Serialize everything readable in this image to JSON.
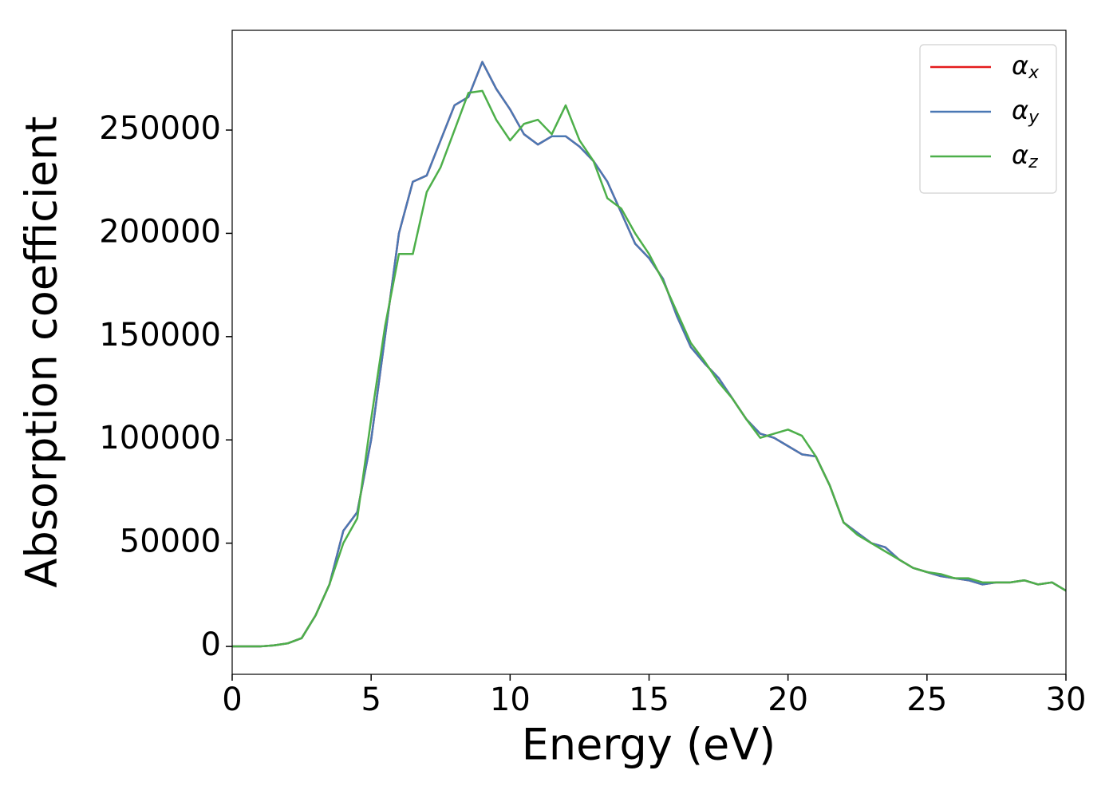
{
  "chart_data": {
    "type": "line",
    "xlabel": "Energy (eV)",
    "ylabel": "Absorption coefficient",
    "x": [
      0,
      0.5,
      1,
      1.5,
      2,
      2.5,
      3,
      3.5,
      4,
      4.5,
      5,
      5.5,
      6,
      6.5,
      7,
      7.5,
      8,
      8.5,
      9,
      9.5,
      10,
      10.5,
      11,
      11.5,
      12,
      12.5,
      13,
      13.5,
      14,
      14.5,
      15,
      15.5,
      16,
      16.5,
      17,
      17.5,
      18,
      18.5,
      19,
      19.5,
      20,
      20.5,
      21,
      21.5,
      22,
      22.5,
      23,
      23.5,
      24,
      24.5,
      25,
      25.5,
      26,
      26.5,
      27,
      27.5,
      28,
      28.5,
      29,
      29.5,
      30
    ],
    "series": [
      {
        "name": "αx",
        "color": "#e41a1c",
        "values": [
          0,
          0,
          0,
          500,
          1500,
          4000,
          15000,
          30000,
          56000,
          65000,
          100000,
          150000,
          200000,
          225000,
          228000,
          245000,
          262000,
          266000,
          283000,
          270000,
          260000,
          248000,
          243000,
          247000,
          247000,
          242000,
          235000,
          225000,
          210000,
          195000,
          188000,
          178000,
          160000,
          145000,
          137000,
          130000,
          120000,
          110000,
          103000,
          101000,
          97000,
          93000,
          92000,
          78000,
          60000,
          55000,
          50000,
          48000,
          42000,
          38000,
          36000,
          34000,
          33000,
          32000,
          30000,
          31000,
          31000,
          32000,
          30000,
          31000,
          27000
        ]
      },
      {
        "name": "αy",
        "color": "#4a78b4",
        "values": [
          0,
          0,
          0,
          500,
          1500,
          4000,
          15000,
          30000,
          56000,
          65000,
          100000,
          150000,
          200000,
          225000,
          228000,
          245000,
          262000,
          266000,
          283000,
          270000,
          260000,
          248000,
          243000,
          247000,
          247000,
          242000,
          235000,
          225000,
          210000,
          195000,
          188000,
          178000,
          160000,
          145000,
          137000,
          130000,
          120000,
          110000,
          103000,
          101000,
          97000,
          93000,
          92000,
          78000,
          60000,
          55000,
          50000,
          48000,
          42000,
          38000,
          36000,
          34000,
          33000,
          32000,
          30000,
          31000,
          31000,
          32000,
          30000,
          31000,
          27000
        ]
      },
      {
        "name": "αz",
        "color": "#4daf4a",
        "values": [
          0,
          0,
          0,
          500,
          1500,
          4000,
          15000,
          30000,
          50000,
          62000,
          110000,
          155000,
          190000,
          190000,
          220000,
          232000,
          250000,
          268000,
          269000,
          255000,
          245000,
          253000,
          255000,
          248000,
          262000,
          245000,
          235000,
          217000,
          212000,
          200000,
          190000,
          177000,
          162000,
          147000,
          138000,
          128000,
          120000,
          110000,
          101000,
          103000,
          105000,
          102000,
          92000,
          78000,
          60000,
          54000,
          50000,
          46000,
          42000,
          38000,
          36000,
          35000,
          33000,
          33000,
          31000,
          31000,
          31000,
          32000,
          30000,
          31000,
          27000
        ]
      }
    ],
    "xlim": [
      0,
      30
    ],
    "xticks": [
      0,
      5,
      10,
      15,
      20,
      25,
      30
    ],
    "ylim": [
      -13500,
      298300
    ],
    "yticks": [
      0,
      50000,
      100000,
      150000,
      200000,
      250000
    ],
    "legend": "upper right"
  }
}
